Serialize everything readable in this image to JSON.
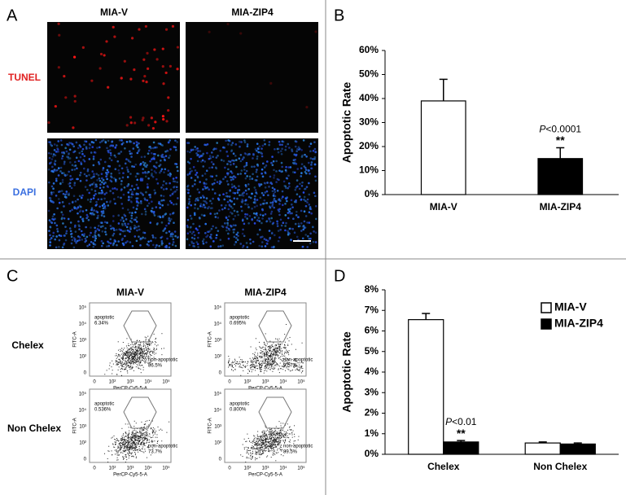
{
  "panel_a": {
    "label": "A",
    "columns": [
      "MIA-V",
      "MIA-ZIP4"
    ],
    "rows": [
      "TUNEL",
      "DAPI"
    ]
  },
  "panel_c": {
    "label": "C",
    "columns": [
      "MIA-V",
      "MIA-ZIP4"
    ],
    "rows": [
      "Chelex",
      "Non Chelex"
    ],
    "plots": [
      {
        "gate": "apoptotic",
        "gate_pct": "6.34%",
        "rest": "non-apoptotic",
        "rest_pct": "86.5%"
      },
      {
        "gate": "apoptotic",
        "gate_pct": "0.695%",
        "rest": "non-apoptotic",
        "rest_pct": "92.7%"
      },
      {
        "gate": "apoptotic",
        "gate_pct": "0.536%",
        "rest": "non-apoptotic",
        "rest_pct": "73.7%"
      },
      {
        "gate": "apoptotic",
        "gate_pct": "0.800%",
        "rest": "non-apoptotic",
        "rest_pct": "89.5%"
      }
    ],
    "x_axis": "PerCP-Cy5-5-A",
    "y_axis": "FITC-A",
    "ticks": [
      "0",
      "10²",
      "10³",
      "10⁴",
      "10⁵"
    ]
  },
  "chart_data": [
    {
      "label": "B",
      "type": "bar",
      "categories": [
        "MIA-V",
        "MIA-ZIP4"
      ],
      "values": [
        39,
        15
      ],
      "errors": [
        9,
        4.5
      ],
      "colors": [
        "#ffffff",
        "#000000"
      ],
      "ylabel": "Apoptotic Rate",
      "ylim": [
        0,
        60
      ],
      "yticks": [
        {
          "value": 0,
          "label": "0%"
        },
        {
          "value": 10,
          "label": "10%"
        },
        {
          "value": 20,
          "label": "20%"
        },
        {
          "value": 30,
          "label": "30%"
        },
        {
          "value": 40,
          "label": "40%"
        },
        {
          "value": 50,
          "label": "50%"
        },
        {
          "value": 60,
          "label": "60%"
        }
      ],
      "annotation": {
        "symbol": "P",
        "text": "<0.0001",
        "stars": "**"
      }
    },
    {
      "label": "D",
      "type": "grouped_bar",
      "categories": [
        "Chelex",
        "Non Chelex"
      ],
      "series": [
        {
          "name": "MIA-V",
          "color": "#ffffff",
          "values": [
            6.55,
            0.55
          ],
          "errors": [
            0.3,
            0.05
          ]
        },
        {
          "name": "MIA-ZIP4",
          "color": "#000000",
          "values": [
            0.6,
            0.5
          ],
          "errors": [
            0.07,
            0.05
          ]
        }
      ],
      "ylabel": "Apoptotic Rate",
      "ylim": [
        0,
        8
      ],
      "yticks": [
        {
          "value": 0,
          "label": "0%"
        },
        {
          "value": 1,
          "label": "1%"
        },
        {
          "value": 2,
          "label": "2%"
        },
        {
          "value": 3,
          "label": "3%"
        },
        {
          "value": 4,
          "label": "4%"
        },
        {
          "value": 5,
          "label": "5%"
        },
        {
          "value": 6,
          "label": "6%"
        },
        {
          "value": 7,
          "label": "7%"
        },
        {
          "value": 8,
          "label": "8%"
        }
      ],
      "legend": "upper right",
      "annotation": {
        "symbol": "P",
        "text": "<0.01",
        "stars": "**"
      }
    }
  ]
}
